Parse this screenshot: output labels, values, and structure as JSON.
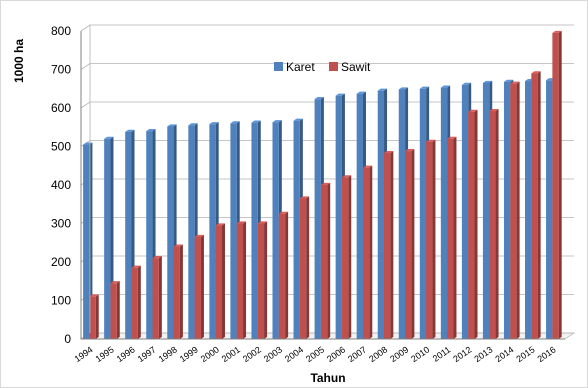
{
  "chart_data": {
    "type": "bar",
    "xlabel": "Tahun",
    "ylabel": "1000 ha",
    "ylim": [
      0,
      800
    ],
    "yticks": [
      0,
      100,
      200,
      300,
      400,
      500,
      600,
      700,
      800
    ],
    "grid": true,
    "legend_position": "top-center",
    "categories": [
      "1994",
      "1995",
      "1996",
      "1997",
      "1998",
      "1999",
      "2000",
      "2001",
      "2002",
      "2003",
      "2004",
      "2005",
      "2006",
      "2007",
      "2008",
      "2009",
      "2010",
      "2011",
      "2012",
      "2013",
      "2014",
      "2015",
      "2016"
    ],
    "series": [
      {
        "name": "Karet",
        "color": "#4f81bd",
        "values": [
          505,
          520,
          538,
          540,
          552,
          555,
          558,
          560,
          562,
          563,
          567,
          623,
          632,
          637,
          645,
          648,
          650,
          653,
          660,
          665,
          668,
          670,
          672
        ]
      },
      {
        "name": "Sawit",
        "color": "#c0504d",
        "values": [
          110,
          145,
          185,
          210,
          240,
          265,
          295,
          300,
          300,
          325,
          365,
          400,
          420,
          445,
          483,
          488,
          512,
          520,
          590,
          592,
          663,
          690,
          795
        ]
      }
    ]
  }
}
